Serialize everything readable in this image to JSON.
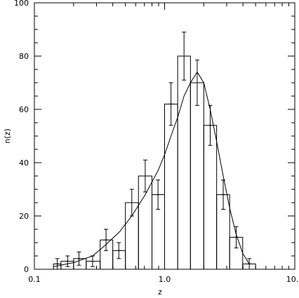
{
  "chart_data": {
    "type": "bar",
    "title": "",
    "xlabel": "z",
    "ylabel": "n(z)",
    "xscale": "log",
    "xlim": [
      0.1,
      10.0
    ],
    "ylim": [
      0,
      100
    ],
    "grid": false,
    "x_ticks": [
      {
        "value": 0.1,
        "label": "0.1"
      },
      {
        "value": 1.0,
        "label": "1.0"
      },
      {
        "value": 10.0,
        "label": "10.0"
      }
    ],
    "y_ticks": [
      {
        "value": 0,
        "label": "0"
      },
      {
        "value": 20,
        "label": "20"
      },
      {
        "value": 40,
        "label": "40"
      },
      {
        "value": 60,
        "label": "60"
      },
      {
        "value": 80,
        "label": "80"
      },
      {
        "value": 100,
        "label": "100"
      }
    ],
    "histogram": {
      "bin_edges": [
        0.14,
        0.16,
        0.2,
        0.25,
        0.32,
        0.4,
        0.5,
        0.63,
        0.8,
        1.0,
        1.26,
        1.58,
        2.0,
        2.51,
        3.16,
        3.98,
        5.0
      ],
      "values": [
        2,
        3,
        4,
        3,
        11,
        7,
        25,
        35,
        28,
        62,
        80,
        70,
        54,
        28,
        12,
        2
      ]
    },
    "error_points": [
      {
        "x": 0.15,
        "y": 2,
        "yerr": 2
      },
      {
        "x": 0.18,
        "y": 3,
        "yerr": 2
      },
      {
        "x": 0.22,
        "y": 4,
        "yerr": 2.5
      },
      {
        "x": 0.28,
        "y": 3,
        "yerr": 2
      },
      {
        "x": 0.355,
        "y": 11,
        "yerr": 4
      },
      {
        "x": 0.445,
        "y": 7,
        "yerr": 3
      },
      {
        "x": 0.56,
        "y": 25,
        "yerr": 5
      },
      {
        "x": 0.71,
        "y": 35,
        "yerr": 6
      },
      {
        "x": 0.89,
        "y": 28,
        "yerr": 5.5
      },
      {
        "x": 1.12,
        "y": 62,
        "yerr": 8
      },
      {
        "x": 1.41,
        "y": 80,
        "yerr": 9
      },
      {
        "x": 1.78,
        "y": 70,
        "yerr": 8.5
      },
      {
        "x": 2.24,
        "y": 54,
        "yerr": 7.5
      },
      {
        "x": 2.82,
        "y": 28,
        "yerr": 5.5
      },
      {
        "x": 3.55,
        "y": 12,
        "yerr": 4
      },
      {
        "x": 4.47,
        "y": 2,
        "yerr": 2
      }
    ],
    "curve": {
      "x": [
        0.14,
        0.2,
        0.28,
        0.35,
        0.45,
        0.56,
        0.71,
        0.89,
        1.0,
        1.12,
        1.26,
        1.41,
        1.58,
        1.78,
        2.0,
        2.24,
        2.51,
        2.82,
        3.16,
        3.55,
        3.98,
        4.47
      ],
      "y": [
        1,
        2.5,
        5,
        9,
        14,
        20,
        28,
        37,
        43,
        50,
        57,
        65,
        70,
        74,
        70,
        60,
        48,
        35,
        23,
        13,
        6,
        2
      ]
    }
  }
}
